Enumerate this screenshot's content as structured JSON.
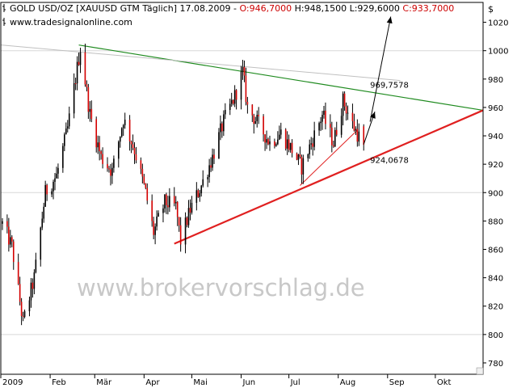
{
  "header": {
    "symbol_text": "GOLD USD/OZ [XAUUSD GTM  Täglich] 17.08.2009 - ",
    "open_text": "O:946,7000",
    "high_text": " H:948,1500",
    "low_text": " L:929,6000",
    "close_text": " C:933,7000",
    "url": "www.tradesignalonline.com",
    "currency": "$"
  },
  "watermark": "www.brokervorschlag.de",
  "colors": {
    "up_candle": "#000000",
    "down_candle": "#d40000",
    "resistance_line": "#1e8a1e",
    "support_line": "#e02020",
    "neutral_line": "#c0c0c0",
    "projection_arrow": "#000000",
    "grid": "#d8d8d8",
    "close_text": "#cc0000"
  },
  "chart_data": {
    "type": "candlestick",
    "title": "GOLD USD/OZ [XAUUSD GTM  Täglich] 17.08.2009",
    "ylabel": "$",
    "ylim": [
      772,
      1034
    ],
    "y_ticks": [
      780,
      800,
      820,
      840,
      860,
      880,
      900,
      920,
      940,
      960,
      980,
      1000,
      1020
    ],
    "y_tick_labels": [
      "780",
      "800",
      "820",
      "840",
      "860",
      "880",
      "900",
      "920",
      "940",
      "960",
      "980",
      "1000",
      "1020"
    ],
    "x_range": [
      "2009-01-01",
      "2009-10-31"
    ],
    "x_ticks": [
      "2009-01-01",
      "2009-02-01",
      "2009-03-01",
      "2009-04-01",
      "2009-05-01",
      "2009-06-01",
      "2009-07-01",
      "2009-08-01",
      "2009-09-01",
      "2009-10-01"
    ],
    "x_tick_labels": [
      "2009",
      "Feb",
      "Mär",
      "Apr",
      "Mai",
      "Jun",
      "Jul",
      "Aug",
      "Sep",
      "Okt"
    ],
    "grid": "horizontal",
    "last_bar": {
      "date": "2009-08-17",
      "open": 946.7,
      "high": 948.15,
      "low": 929.6,
      "close": 933.7
    },
    "path": [
      {
        "date": "2009-01-02",
        "value": 878
      },
      {
        "date": "2009-01-08",
        "value": 862
      },
      {
        "date": "2009-01-15",
        "value": 808
      },
      {
        "date": "2009-01-22",
        "value": 840
      },
      {
        "date": "2009-01-29",
        "value": 900
      },
      {
        "date": "2009-02-05",
        "value": 912
      },
      {
        "date": "2009-02-12",
        "value": 945
      },
      {
        "date": "2009-02-20",
        "value": 1002
      },
      {
        "date": "2009-02-26",
        "value": 955
      },
      {
        "date": "2009-03-05",
        "value": 925
      },
      {
        "date": "2009-03-12",
        "value": 915
      },
      {
        "date": "2009-03-19",
        "value": 952
      },
      {
        "date": "2009-03-26",
        "value": 930
      },
      {
        "date": "2009-04-02",
        "value": 900
      },
      {
        "date": "2009-04-07",
        "value": 872
      },
      {
        "date": "2009-04-14",
        "value": 893
      },
      {
        "date": "2009-04-21",
        "value": 890
      },
      {
        "date": "2009-04-24",
        "value": 866
      },
      {
        "date": "2009-04-30",
        "value": 888
      },
      {
        "date": "2009-05-07",
        "value": 905
      },
      {
        "date": "2009-05-14",
        "value": 925
      },
      {
        "date": "2009-05-21",
        "value": 950
      },
      {
        "date": "2009-05-28",
        "value": 968
      },
      {
        "date": "2009-06-02",
        "value": 985
      },
      {
        "date": "2009-06-05",
        "value": 960
      },
      {
        "date": "2009-06-12",
        "value": 948
      },
      {
        "date": "2009-06-19",
        "value": 935
      },
      {
        "date": "2009-06-26",
        "value": 942
      },
      {
        "date": "2009-07-03",
        "value": 930
      },
      {
        "date": "2009-07-09",
        "value": 918
      },
      {
        "date": "2009-07-15",
        "value": 935
      },
      {
        "date": "2009-07-22",
        "value": 955
      },
      {
        "date": "2009-07-29",
        "value": 935
      },
      {
        "date": "2009-08-04",
        "value": 965
      },
      {
        "date": "2009-08-10",
        "value": 948
      },
      {
        "date": "2009-08-17",
        "value": 933
      }
    ],
    "lines": [
      {
        "name": "resistance",
        "style": "green",
        "from": {
          "date": "2009-02-19",
          "value": 1004
        },
        "to": {
          "date": "2009-10-31",
          "value": 958
        },
        "label": "969,7578",
        "label_at": {
          "date": "2009-08-21",
          "value": 974
        }
      },
      {
        "name": "support",
        "style": "red",
        "from": {
          "date": "2009-04-20",
          "value": 864
        },
        "to": {
          "date": "2009-10-31",
          "value": 958
        },
        "label": "924,0678",
        "label_at": {
          "date": "2009-08-21",
          "value": 921
        }
      },
      {
        "name": "minor-support",
        "style": "red-thin",
        "from": {
          "date": "2009-07-08",
          "value": 905
        },
        "to": {
          "date": "2009-08-13",
          "value": 944
        }
      },
      {
        "name": "channel-top",
        "style": "gray",
        "from": {
          "date": "2009-01-01",
          "value": 1004
        },
        "to": {
          "date": "2009-09-09",
          "value": 979
        }
      }
    ],
    "arrows": [
      {
        "name": "small-projection",
        "points": [
          {
            "date": "2009-08-17",
            "value": 934
          },
          {
            "date": "2009-08-24",
            "value": 957
          }
        ]
      },
      {
        "name": "large-projection",
        "points": [
          {
            "date": "2009-08-21",
            "value": 950
          },
          {
            "date": "2009-09-03",
            "value": 1024
          }
        ]
      }
    ]
  }
}
